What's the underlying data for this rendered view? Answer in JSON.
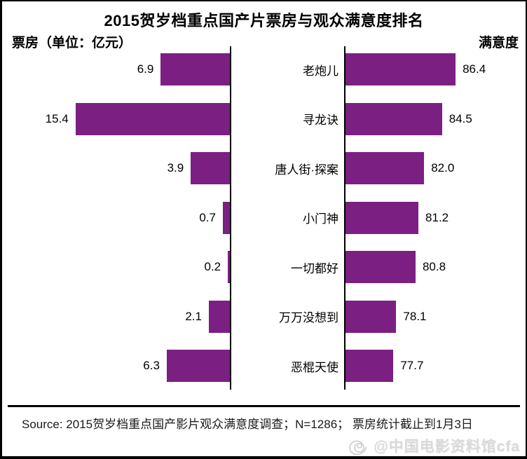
{
  "title": "2015贺岁档重点国产片票房与观众满意度排名",
  "header": {
    "left_axis_label": "票房（单位：亿元）",
    "right_axis_label": "满意度"
  },
  "footer": {
    "source_note": "Source: 2015贺岁档重点国产影片观众满意度调查；N=1286； 票房统计截止到1月3日",
    "watermark_text": "@中国电影资料馆cfa",
    "watermark_icon": "spiral-logo-icon"
  },
  "colors": {
    "bar": "#7B2082",
    "axis": "#000000",
    "text": "#000000",
    "watermark": "#D9D9D9"
  },
  "chart_data": {
    "type": "bar",
    "orientation": "horizontal-mirrored",
    "title": "2015贺岁档重点国产片票房与观众满意度排名",
    "categories": [
      "老炮儿",
      "寻龙诀",
      "唐人街·探案",
      "小门神",
      "一切都好",
      "万万没想到",
      "恶棍天使"
    ],
    "series": [
      {
        "name": "票房（单位：亿元）",
        "side": "left",
        "values": [
          6.9,
          15.4,
          3.9,
          0.7,
          0.2,
          2.1,
          6.3
        ],
        "labels": [
          "6.9",
          "15.4",
          "3.9",
          "0.7",
          "0.2",
          "2.1",
          "6.3"
        ],
        "axis_range": [
          0,
          15.4
        ]
      },
      {
        "name": "满意度",
        "side": "right",
        "values": [
          86.4,
          84.5,
          82.0,
          81.2,
          80.8,
          78.1,
          77.7
        ],
        "labels": [
          "86.4",
          "84.5",
          "82.0",
          "81.2",
          "80.8",
          "78.1",
          "77.7"
        ],
        "axis_implied_min": 71
      }
    ],
    "grid": false,
    "legend": false,
    "value_labels_shown": true
  }
}
